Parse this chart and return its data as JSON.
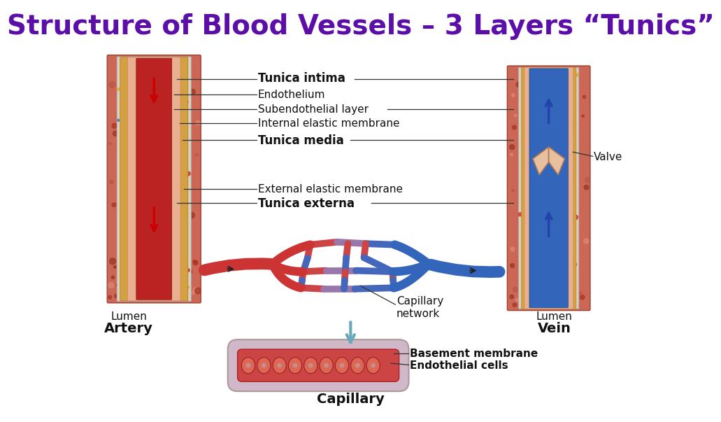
{
  "title": "Structure of Blood Vessels – 3 Layers “Tunics”",
  "title_color": "#5B0FA8",
  "title_fontsize": 28,
  "title_fontweight": "bold",
  "background_color": "#ffffff",
  "labels": {
    "tunica_intima": "Tunica intima",
    "endothelium": "Endothelium",
    "subendothelial": "Subendothelial layer",
    "internal_elastic": "Internal elastic membrane",
    "tunica_media": "Tunica media",
    "external_elastic": "External elastic membrane",
    "tunica_externa": "Tunica externa",
    "lumen_artery": "Lumen",
    "artery": "Artery",
    "lumen_vein": "Lumen",
    "vein": "Vein",
    "capillary_network": "Capillary\nnetwork",
    "capillary": "Capillary",
    "basement_membrane": "Basement membrane",
    "endothelial_cells": "Endothelial cells",
    "valve": "Valve"
  },
  "line_color": "#333333"
}
